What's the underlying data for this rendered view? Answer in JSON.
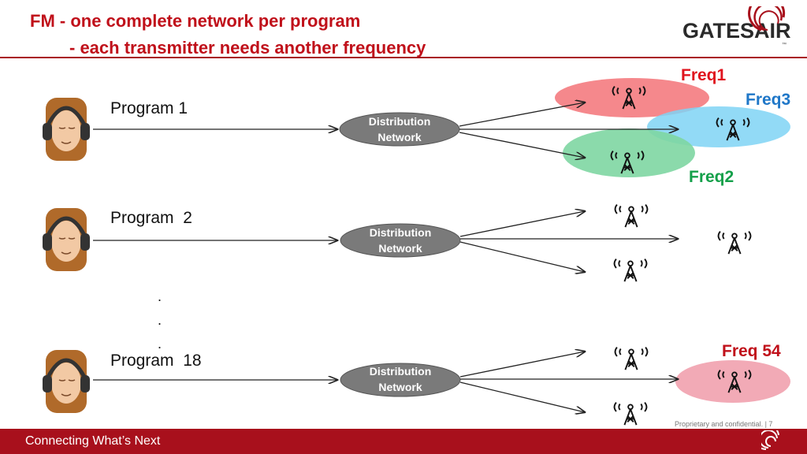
{
  "slide": {
    "title_line1": "FM  - one complete network per program",
    "title_line2": "- each transmitter needs another frequency",
    "logo_text": "GATESAIR",
    "logo_tm": "™"
  },
  "programs": [
    {
      "label": "Program 1",
      "node_line1": "Distribution",
      "node_line2": "Network"
    },
    {
      "label": "Program  2",
      "node_line1": "Distribution",
      "node_line2": "Network"
    },
    {
      "label": "Program  18",
      "node_line1": "Distribution",
      "node_line2": "Network"
    }
  ],
  "ellipsis": [
    ".",
    ".",
    "."
  ],
  "frequencies": [
    {
      "label": "Freq1",
      "color": "#e0141e"
    },
    {
      "label": "Freq3",
      "color": "#1f77c8"
    },
    {
      "label": "Freq2",
      "color": "#14a04a"
    },
    {
      "label": "Freq 54",
      "color": "#c0101a"
    }
  ],
  "colors": {
    "accent": "#a8101c",
    "freq1_fill": "#f47b80",
    "freq3_fill": "#7fd3f4",
    "freq2_fill": "#7ed6a2",
    "freq54_fill": "#f2aab6",
    "node_fill": "#7a7a7a"
  },
  "footer": {
    "tagline": "Connecting What’s Next",
    "confidential": "Proprietary and confidential.  |  7"
  }
}
